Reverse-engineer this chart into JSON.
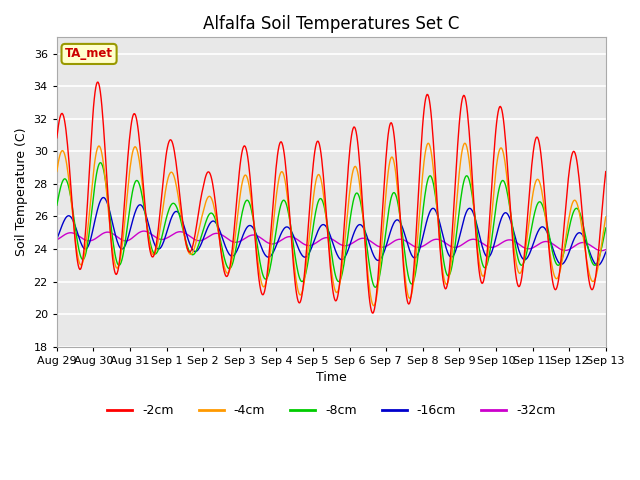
{
  "title": "Alfalfa Soil Temperatures Set C",
  "xlabel": "Time",
  "ylabel": "Soil Temperature (C)",
  "ylim": [
    18,
    37
  ],
  "yticks": [
    18,
    20,
    22,
    24,
    26,
    28,
    30,
    32,
    34,
    36
  ],
  "background_color": "#ffffff",
  "plot_bg_color": "#e8e8e8",
  "annotation_label": "TA_met",
  "annotation_color": "#cc0000",
  "annotation_bg": "#ffffcc",
  "annotation_border": "#999900",
  "series": {
    "-2cm": {
      "color": "#ff0000",
      "lw": 1.0
    },
    "-4cm": {
      "color": "#ff9900",
      "lw": 1.0
    },
    "-8cm": {
      "color": "#00cc00",
      "lw": 1.0
    },
    "-16cm": {
      "color": "#0000cc",
      "lw": 1.0
    },
    "-32cm": {
      "color": "#cc00cc",
      "lw": 1.0
    }
  },
  "xtick_labels": [
    "Aug 29",
    "Aug 30",
    "Aug 31",
    "Sep 1",
    "Sep 2",
    "Sep 3",
    "Sep 4",
    "Sep 5",
    "Sep 6",
    "Sep 7",
    "Sep 8",
    "Sep 9",
    "Sep 10",
    "Sep 11",
    "Sep 12",
    "Sep 13"
  ],
  "legend_labels": [
    "-2cm",
    "-4cm",
    "-8cm",
    "-16cm",
    "-32cm"
  ],
  "legend_colors": [
    "#ff0000",
    "#ff9900",
    "#00cc00",
    "#0000cc",
    "#cc00cc"
  ]
}
